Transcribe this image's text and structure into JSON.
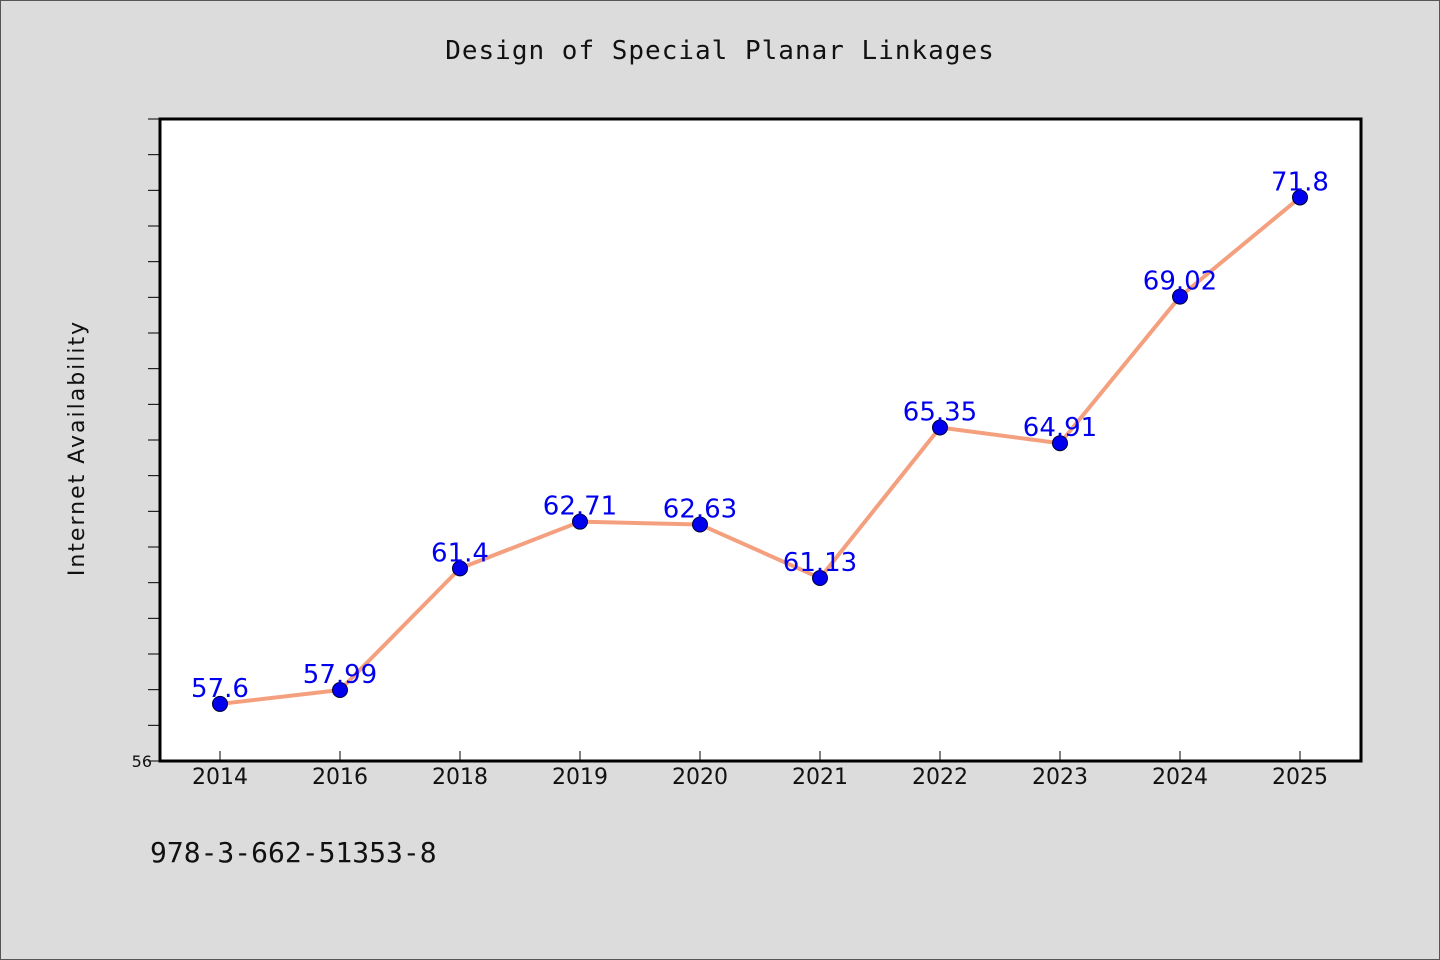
{
  "chart_data": {
    "type": "line",
    "title": "Design of Special Planar Linkages",
    "xlabel": "",
    "ylabel": "Internet Availability",
    "categories": [
      "2014",
      "2016",
      "2018",
      "2019",
      "2020",
      "2021",
      "2022",
      "2023",
      "2024",
      "2025"
    ],
    "series": [
      {
        "values": [
          57.6,
          57.99,
          61.4,
          62.71,
          62.63,
          61.13,
          65.35,
          64.91,
          69.02,
          71.8
        ]
      }
    ],
    "data_labels": [
      "57.6",
      "57.99",
      "61.4",
      "62.71",
      "62.63",
      "61.13",
      "65.35",
      "64.91",
      "69.02",
      "71.8"
    ],
    "ylim": [
      56,
      74
    ],
    "y_tick_step": 1,
    "y_tick_labels": [
      "56"
    ],
    "grid": false,
    "line_color": "#f4a07f",
    "marker_color": "#0000ee",
    "label_color": "#0000ee",
    "plot_background": "#ffffff",
    "page_background": "#dcdcdc"
  },
  "footer": {
    "code": "978-3-662-51353-8"
  }
}
